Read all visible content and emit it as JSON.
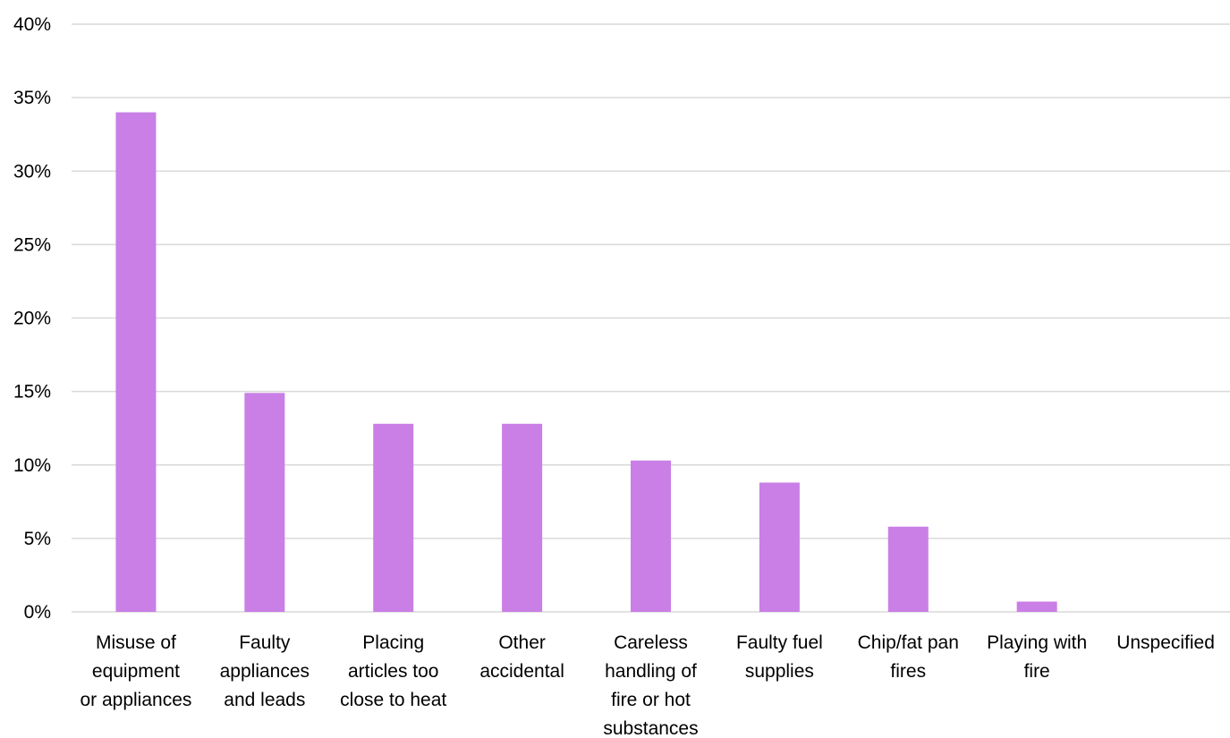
{
  "chart_data": {
    "type": "bar",
    "title": "",
    "xlabel": "",
    "ylabel": "",
    "ylim": [
      0,
      40
    ],
    "yticks": [
      0,
      5,
      10,
      15,
      20,
      25,
      30,
      35,
      40
    ],
    "ytick_labels": [
      "0%",
      "5%",
      "10%",
      "15%",
      "20%",
      "25%",
      "30%",
      "35%",
      "40%"
    ],
    "grid": true,
    "legend": "none",
    "bar_color": "#c97fe6",
    "categories": [
      [
        "Misuse of",
        "equipment",
        "or appliances"
      ],
      [
        "Faulty",
        "appliances",
        "and leads"
      ],
      [
        "Placing",
        "articles too",
        "close to heat"
      ],
      [
        "Other",
        "accidental"
      ],
      [
        "Careless",
        "handling of",
        "fire or hot",
        "substances"
      ],
      [
        "Faulty fuel",
        "supplies"
      ],
      [
        "Chip/fat pan",
        "fires"
      ],
      [
        "Playing with",
        "fire"
      ],
      [
        "Unspecified"
      ]
    ],
    "values": [
      34.0,
      14.9,
      12.8,
      12.8,
      10.3,
      8.8,
      5.8,
      0.7,
      0.0
    ]
  }
}
